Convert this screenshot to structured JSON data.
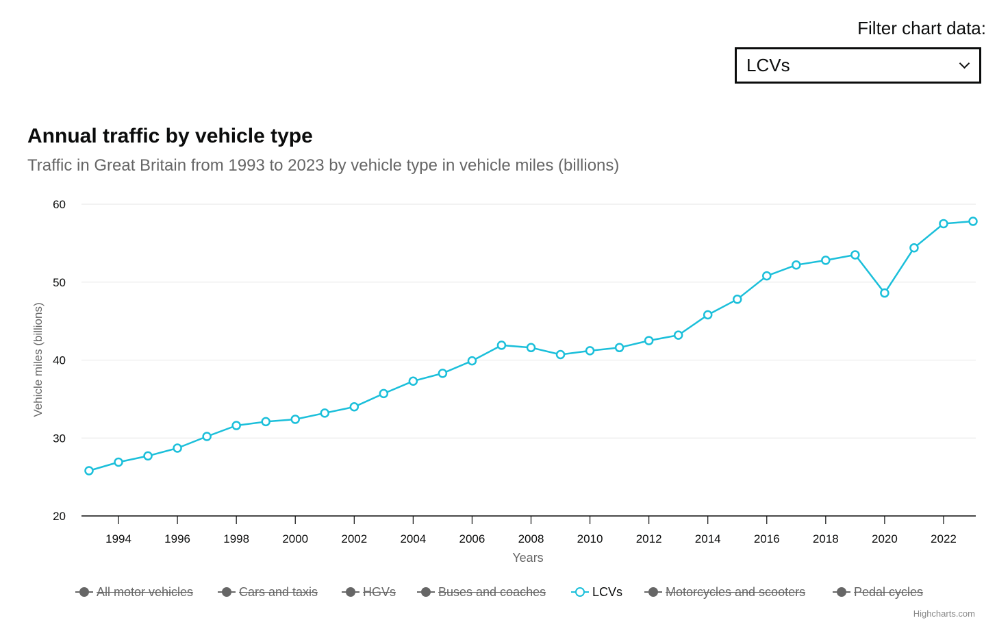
{
  "filter": {
    "label": "Filter chart data:",
    "selected": "LCVs"
  },
  "chart_data": {
    "type": "line",
    "title": "Annual traffic by vehicle type",
    "subtitle": "Traffic in Great Britain from 1993 to 2023 by vehicle type in vehicle miles (billions)",
    "xlabel": "Years",
    "ylabel": "Vehicle miles (billions)",
    "ylim": [
      20,
      60
    ],
    "yticks": [
      20,
      30,
      40,
      50,
      60
    ],
    "xlim": [
      1993,
      2023
    ],
    "xticks": [
      1994,
      1996,
      1998,
      2000,
      2002,
      2004,
      2006,
      2008,
      2010,
      2012,
      2014,
      2016,
      2018,
      2020,
      2022
    ],
    "grid": true,
    "legend_position": "bottom",
    "series": [
      {
        "name": "LCVs",
        "color": "#1bbfda",
        "x": [
          1993,
          1994,
          1995,
          1996,
          1997,
          1998,
          1999,
          2000,
          2001,
          2002,
          2003,
          2004,
          2005,
          2006,
          2007,
          2008,
          2009,
          2010,
          2011,
          2012,
          2013,
          2014,
          2015,
          2016,
          2017,
          2018,
          2019,
          2020,
          2021,
          2022,
          2023
        ],
        "values": [
          25.8,
          26.9,
          27.7,
          28.7,
          30.2,
          31.6,
          32.1,
          32.4,
          33.2,
          34.0,
          35.7,
          37.3,
          38.3,
          39.9,
          41.9,
          41.6,
          40.7,
          41.2,
          41.6,
          42.5,
          43.2,
          45.8,
          47.8,
          50.8,
          52.2,
          52.8,
          53.5,
          48.6,
          54.4,
          57.5,
          57.8
        ]
      }
    ]
  },
  "legend": {
    "items": [
      {
        "label": "All motor vehicles",
        "state": "hidden"
      },
      {
        "label": "Cars and taxis",
        "state": "hidden"
      },
      {
        "label": "HGVs",
        "state": "hidden"
      },
      {
        "label": "Buses and coaches",
        "state": "hidden"
      },
      {
        "label": "LCVs",
        "state": "active"
      },
      {
        "label": "Motorcycles and scooters",
        "state": "hidden"
      },
      {
        "label": "Pedal cycles",
        "state": "hidden"
      }
    ]
  },
  "credits": "Highcharts.com"
}
